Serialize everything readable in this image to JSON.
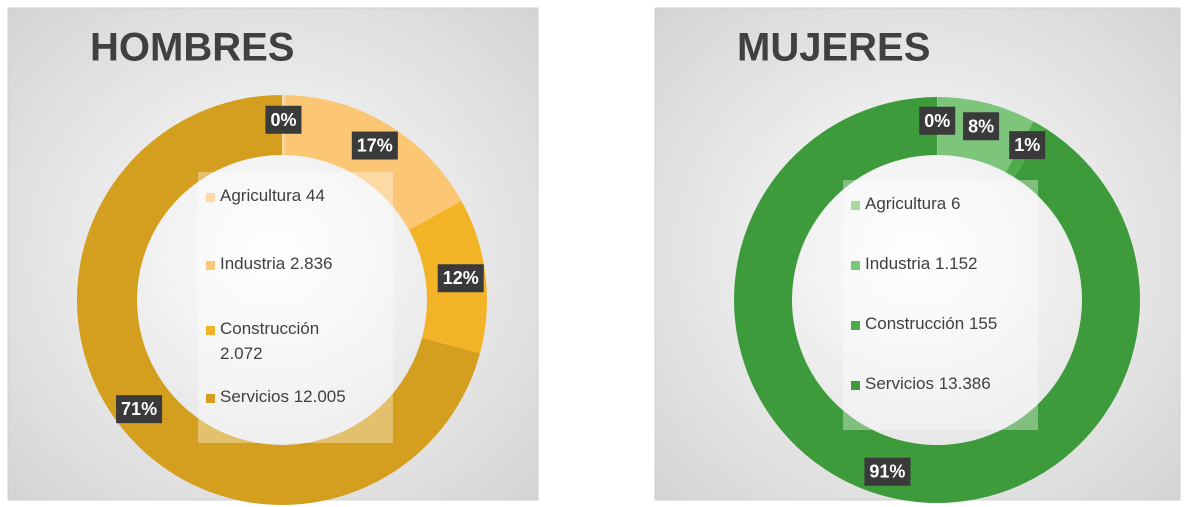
{
  "chart_data": [
    {
      "type": "donut",
      "title": "HOMBRES",
      "categories": [
        "Agricultura",
        "Industria",
        "Construcción",
        "Servicios"
      ],
      "values": [
        44,
        2836,
        2072,
        12005
      ],
      "value_labels": [
        "44",
        "2.836",
        "2.072",
        "12.005"
      ],
      "percent_labels": [
        "0%",
        "17%",
        "12%",
        "71%"
      ],
      "colors": [
        "#fdd9a6",
        "#fcc774",
        "#f3b326",
        "#d49e1e"
      ]
    },
    {
      "type": "donut",
      "title": "MUJERES",
      "categories": [
        "Agricultura",
        "Industria",
        "Construcción",
        "Servicios"
      ],
      "values": [
        6,
        1152,
        155,
        13386
      ],
      "value_labels": [
        "6",
        "1.152",
        "155",
        "13.386"
      ],
      "percent_labels": [
        "0%",
        "8%",
        "1%",
        "91%"
      ],
      "colors": [
        "#a9d9a0",
        "#7cc57a",
        "#4eab4b",
        "#3e9b3b"
      ]
    }
  ]
}
